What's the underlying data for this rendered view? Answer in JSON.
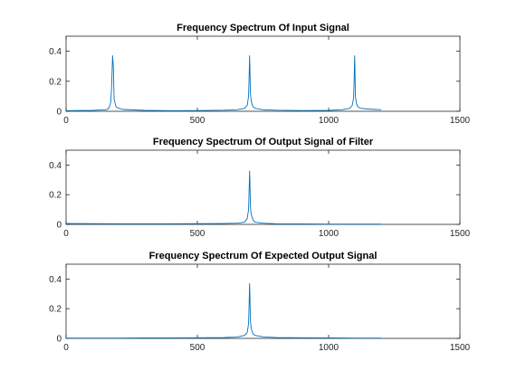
{
  "figure": {
    "background": "#ffffff"
  },
  "chart_data": [
    {
      "type": "line",
      "title": "Frequency Spectrum Of Input Signal",
      "xlabel": "",
      "ylabel": "",
      "xlim": [
        0,
        1500
      ],
      "ylim": [
        0,
        0.5
      ],
      "xticks": [
        0,
        500,
        1000,
        1500
      ],
      "yticks": [
        0,
        0.2,
        0.4
      ],
      "grid": false,
      "series": [
        {
          "color": "#0072bd",
          "x": [
            0,
            100,
            150,
            160,
            165,
            170,
            173,
            175,
            177,
            180,
            183,
            186,
            190,
            200,
            220,
            300,
            400,
            500,
            600,
            650,
            680,
            690,
            695,
            697,
            699,
            700,
            702,
            705,
            708,
            712,
            720,
            750,
            800,
            900,
            1000,
            1050,
            1080,
            1090,
            1095,
            1097,
            1099,
            1100,
            1102,
            1105,
            1108,
            1112,
            1120,
            1150,
            1200
          ],
          "y": [
            0.004,
            0.006,
            0.01,
            0.015,
            0.03,
            0.06,
            0.15,
            0.25,
            0.37,
            0.3,
            0.08,
            0.06,
            0.03,
            0.02,
            0.012,
            0.006,
            0.004,
            0.005,
            0.007,
            0.01,
            0.02,
            0.04,
            0.1,
            0.22,
            0.37,
            0.3,
            0.12,
            0.07,
            0.05,
            0.03,
            0.02,
            0.01,
            0.007,
            0.005,
            0.006,
            0.01,
            0.02,
            0.04,
            0.09,
            0.2,
            0.37,
            0.3,
            0.1,
            0.06,
            0.04,
            0.03,
            0.02,
            0.015,
            0.01
          ]
        }
      ]
    },
    {
      "type": "line",
      "title": "Frequency Spectrum Of Output Signal of Filter",
      "xlabel": "",
      "ylabel": "",
      "xlim": [
        0,
        1500
      ],
      "ylim": [
        0,
        0.5
      ],
      "xticks": [
        0,
        500,
        1000,
        1500
      ],
      "yticks": [
        0,
        0.2,
        0.4
      ],
      "grid": false,
      "series": [
        {
          "color": "#0072bd",
          "x": [
            0,
            100,
            200,
            300,
            400,
            500,
            600,
            650,
            680,
            690,
            695,
            697,
            699,
            700,
            702,
            705,
            708,
            712,
            720,
            750,
            800,
            900,
            1000,
            1100,
            1200
          ],
          "y": [
            0.006,
            0.005,
            0.004,
            0.004,
            0.004,
            0.005,
            0.006,
            0.008,
            0.015,
            0.04,
            0.1,
            0.22,
            0.36,
            0.3,
            0.12,
            0.07,
            0.05,
            0.03,
            0.015,
            0.008,
            0.004,
            0.003,
            0.002,
            0.002,
            0.002
          ]
        }
      ]
    },
    {
      "type": "line",
      "title": "Frequency Spectrum Of Expected Output Signal",
      "xlabel": "",
      "ylabel": "",
      "xlim": [
        0,
        1500
      ],
      "ylim": [
        0,
        0.5
      ],
      "xticks": [
        0,
        500,
        1000,
        1500
      ],
      "yticks": [
        0,
        0.2,
        0.4
      ],
      "grid": false,
      "series": [
        {
          "color": "#0072bd",
          "x": [
            0,
            100,
            200,
            300,
            400,
            500,
            600,
            650,
            680,
            690,
            695,
            697,
            699,
            700,
            702,
            705,
            708,
            712,
            720,
            750,
            800,
            900,
            1000,
            1100,
            1200
          ],
          "y": [
            0.002,
            0.002,
            0.002,
            0.003,
            0.003,
            0.004,
            0.006,
            0.009,
            0.02,
            0.04,
            0.1,
            0.22,
            0.37,
            0.3,
            0.12,
            0.07,
            0.05,
            0.03,
            0.02,
            0.01,
            0.006,
            0.004,
            0.003,
            0.002,
            0.002
          ]
        }
      ]
    }
  ]
}
